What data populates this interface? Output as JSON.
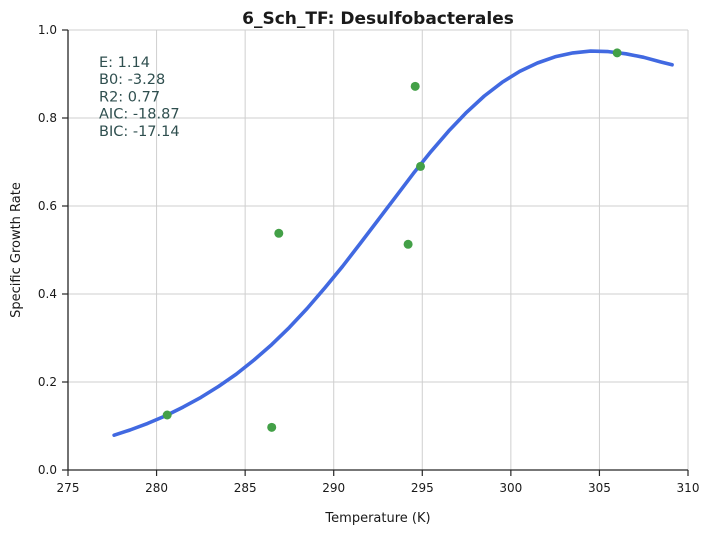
{
  "chart_data": {
    "type": "scatter",
    "title": "6_Sch_TF: Desulfobacterales",
    "xlabel": "Temperature (K)",
    "ylabel": "Specific Growth Rate",
    "xlim": [
      275,
      310
    ],
    "ylim": [
      0.0,
      1.0
    ],
    "xticks": [
      275,
      280,
      285,
      290,
      295,
      300,
      305,
      310
    ],
    "xtick_labels": [
      "275",
      "280",
      "285",
      "290",
      "295",
      "300",
      "305",
      "310"
    ],
    "yticks": [
      0.0,
      0.2,
      0.4,
      0.6,
      0.8,
      1.0
    ],
    "ytick_labels": [
      "0.0",
      "0.2",
      "0.4",
      "0.6",
      "0.8",
      "1.0"
    ],
    "grid": true,
    "series": [
      {
        "kind": "points",
        "color": "#43a047",
        "x": [
          280.6,
          286.5,
          286.9,
          294.2,
          294.6,
          294.9,
          306.0
        ],
        "y": [
          0.125,
          0.097,
          0.538,
          0.513,
          0.872,
          0.69,
          0.948
        ]
      },
      {
        "kind": "line",
        "color": "#4169e1",
        "x": [
          277.6,
          278.5,
          279.5,
          280.5,
          281.5,
          282.5,
          283.5,
          284.5,
          285.5,
          286.5,
          287.5,
          288.5,
          289.5,
          290.5,
          291.5,
          292.5,
          293.5,
          294.5,
          295.5,
          296.5,
          297.5,
          298.5,
          299.5,
          300.5,
          301.5,
          302.5,
          303.5,
          304.5,
          305.5,
          306.5,
          307.5,
          308.5,
          309.1
        ],
        "y": [
          0.079,
          0.091,
          0.106,
          0.123,
          0.143,
          0.165,
          0.19,
          0.218,
          0.25,
          0.285,
          0.324,
          0.367,
          0.414,
          0.463,
          0.515,
          0.568,
          0.621,
          0.674,
          0.724,
          0.771,
          0.813,
          0.85,
          0.881,
          0.906,
          0.925,
          0.939,
          0.948,
          0.952,
          0.951,
          0.946,
          0.938,
          0.927,
          0.921
        ]
      }
    ],
    "annotation": {
      "position": "top-left",
      "lines": [
        "E:  1.14",
        "B0:  -3.28",
        "R2:  0.77",
        "AIC: -18.87",
        "BIC: -17.14"
      ]
    }
  }
}
